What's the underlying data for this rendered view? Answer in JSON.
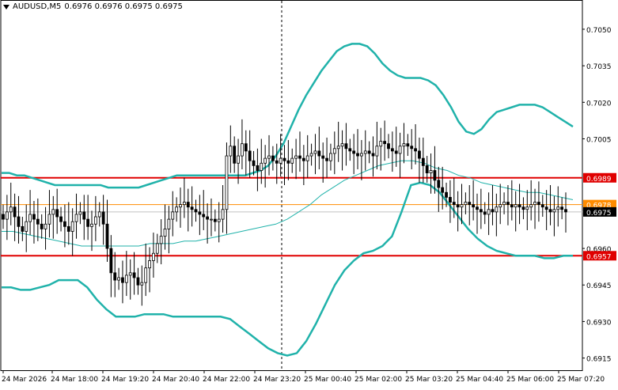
{
  "header": {
    "symbol_tf": "AUDUSD,M5",
    "ohlc": "0.6976 0.6976 0.6975 0.6975",
    "dropdown_icon": "triangle-down-icon"
  },
  "colors": {
    "background": "#ffffff",
    "frame": "#000000",
    "candle": "#000000",
    "bollinger": "#20b2aa",
    "ma": "#20b2aa",
    "resistance_line": "#e00000",
    "support_line": "#e00000",
    "orange_line": "#ff8c00",
    "gray_line": "#c0c0c0",
    "price_tag_red": "#e00000",
    "price_tag_orange": "#ff8c00",
    "current_price_bg": "#000000"
  },
  "chart_data": {
    "type": "candlestick",
    "symbol": "AUDUSD",
    "timeframe": "M5",
    "ylim": [
      0.691,
      0.7062
    ],
    "y_ticks": [
      "0.7050",
      "0.7035",
      "0.7020",
      "0.7005",
      "0.6989",
      "0.6978",
      "0.6975",
      "0.6960",
      "0.6957",
      "0.6945",
      "0.6930",
      "0.6915"
    ],
    "x_tick_labels": [
      "24 Mar 2026",
      "24 Mar 18:00",
      "24 Mar 19:20",
      "24 Mar 20:40",
      "24 Mar 22:00",
      "24 Mar 23:20",
      "25 Mar 00:40",
      "25 Mar 02:00",
      "25 Mar 03:20",
      "25 Mar 04:40",
      "25 Mar 06:00",
      "25 Mar 07:20"
    ],
    "levels": [
      {
        "label": "0.6989",
        "value": 0.6989,
        "style": "red"
      },
      {
        "label": "0.6978",
        "value": 0.6978,
        "style": "orange"
      },
      {
        "label": "0.6975",
        "value": 0.6975,
        "style": "current"
      },
      {
        "label": "0.6957",
        "value": 0.6957,
        "style": "red"
      }
    ],
    "candles_close": [
      0.6972,
      0.6975,
      0.6977,
      0.6973,
      0.6969,
      0.6967,
      0.6971,
      0.6974,
      0.6972,
      0.697,
      0.6968,
      0.697,
      0.6974,
      0.6976,
      0.6973,
      0.6971,
      0.6969,
      0.6967,
      0.6971,
      0.6974,
      0.6975,
      0.6972,
      0.6969,
      0.697,
      0.6973,
      0.6975,
      0.697,
      0.696,
      0.695,
      0.6947,
      0.6948,
      0.6946,
      0.6949,
      0.695,
      0.6948,
      0.6945,
      0.6946,
      0.6952,
      0.6955,
      0.6958,
      0.6962,
      0.6965,
      0.6968,
      0.6972,
      0.6975,
      0.6977,
      0.6978,
      0.6979,
      0.6977,
      0.6976,
      0.6975,
      0.6974,
      0.6973,
      0.6972,
      0.6972,
      0.6971,
      0.6972,
      0.6976,
      0.6998,
      0.7002,
      0.6995,
      0.6998,
      0.7003,
      0.7,
      0.6996,
      0.6994,
      0.6992,
      0.6995,
      0.6997,
      0.6998,
      0.6996,
      0.6995,
      0.6997,
      0.6996,
      0.6995,
      0.6997,
      0.6998,
      0.6997,
      0.6996,
      0.6998,
      0.6999,
      0.7,
      0.6998,
      0.6997,
      0.6996,
      0.6999,
      0.7001,
      0.7002,
      0.7003,
      0.7001,
      0.7,
      0.6999,
      0.6998,
      0.6999,
      0.7,
      0.6999,
      0.6998,
      0.7002,
      0.7004,
      0.7003,
      0.7001,
      0.7,
      0.6999,
      0.7002,
      0.7003,
      0.7002,
      0.7001,
      0.7,
      0.6997,
      0.6994,
      0.6991,
      0.6992,
      0.6988,
      0.6985,
      0.6983,
      0.6981,
      0.6979,
      0.6978,
      0.6977,
      0.6978,
      0.6979,
      0.6978,
      0.6977,
      0.6976,
      0.6975,
      0.6974,
      0.6976,
      0.6975,
      0.6977,
      0.6978,
      0.6979,
      0.6978,
      0.6977,
      0.6978,
      0.6977,
      0.6976,
      0.6977,
      0.6978,
      0.6979,
      0.6978,
      0.6977,
      0.6976,
      0.6975,
      0.6976,
      0.6977,
      0.6976,
      0.6975
    ],
    "bollinger_upper": [
      0.6991,
      0.6991,
      0.699,
      0.699,
      0.6989,
      0.6988,
      0.6987,
      0.6986,
      0.6986,
      0.6986,
      0.6986,
      0.6986,
      0.6986,
      0.6986,
      0.6985,
      0.6985,
      0.6985,
      0.6985,
      0.6985,
      0.6986,
      0.6987,
      0.6988,
      0.6989,
      0.699,
      0.699,
      0.699,
      0.699,
      0.699,
      0.699,
      0.699,
      0.699,
      0.699,
      0.699,
      0.6991,
      0.6992,
      0.6994,
      0.6998,
      0.7003,
      0.701,
      0.7017,
      0.7023,
      0.7028,
      0.7033,
      0.7037,
      0.7041,
      0.7043,
      0.7044,
      0.7044,
      0.7043,
      0.704,
      0.7036,
      0.7033,
      0.7031,
      0.703,
      0.703,
      0.703,
      0.7029,
      0.7027,
      0.7023,
      0.7018,
      0.7012,
      0.7008,
      0.7007,
      0.7009,
      0.7013,
      0.7016,
      0.7017,
      0.7018,
      0.7019,
      0.7019,
      0.7019,
      0.7018,
      0.7016,
      0.7014,
      0.7012,
      0.701
    ],
    "bollinger_lower": [
      0.6944,
      0.6944,
      0.6943,
      0.6943,
      0.6944,
      0.6945,
      0.6947,
      0.6947,
      0.6947,
      0.6944,
      0.6939,
      0.6935,
      0.6932,
      0.6932,
      0.6932,
      0.6933,
      0.6933,
      0.6933,
      0.6932,
      0.6932,
      0.6932,
      0.6932,
      0.6932,
      0.6932,
      0.6931,
      0.6928,
      0.6925,
      0.6922,
      0.6919,
      0.6917,
      0.6916,
      0.6917,
      0.6922,
      0.6929,
      0.6937,
      0.6945,
      0.6951,
      0.6955,
      0.6958,
      0.6959,
      0.6961,
      0.6965,
      0.6975,
      0.6986,
      0.6987,
      0.6986,
      0.6983,
      0.6978,
      0.6973,
      0.6968,
      0.6964,
      0.6961,
      0.6959,
      0.6958,
      0.6957,
      0.6957,
      0.6957,
      0.6956,
      0.6956,
      0.6957,
      0.6957
    ],
    "moving_average": [
      0.6967,
      0.6967,
      0.6966,
      0.6965,
      0.6964,
      0.6963,
      0.6962,
      0.6961,
      0.6961,
      0.6961,
      0.6961,
      0.6961,
      0.6961,
      0.6962,
      0.6962,
      0.6962,
      0.6963,
      0.6963,
      0.6964,
      0.6965,
      0.6966,
      0.6967,
      0.6968,
      0.6969,
      0.697,
      0.6972,
      0.6975,
      0.6978,
      0.6982,
      0.6985,
      0.6988,
      0.699,
      0.6992,
      0.6994,
      0.6995,
      0.6996,
      0.6996,
      0.6995,
      0.6993,
      0.6992,
      0.699,
      0.6989,
      0.6987,
      0.6986,
      0.6985,
      0.6984,
      0.6983,
      0.6983,
      0.6982,
      0.6981,
      0.698
    ]
  }
}
